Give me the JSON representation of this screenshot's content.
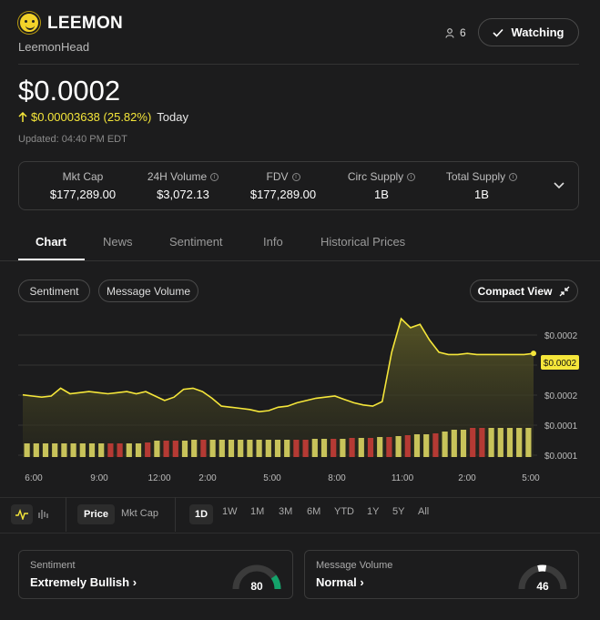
{
  "header": {
    "ticker": "LEEMON",
    "name": "LeemonHead",
    "watchers": "6",
    "watch_label": "Watching"
  },
  "price": {
    "value": "$0.0002",
    "change": "$0.00003638 (25.82%)",
    "period": "Today",
    "updated": "Updated: 04:40 PM EDT"
  },
  "stats": [
    {
      "label": "Mkt Cap",
      "value": "$177,289.00"
    },
    {
      "label": "24H Volume",
      "value": "$3,072.13"
    },
    {
      "label": "FDV",
      "value": "$177,289.00"
    },
    {
      "label": "Circ Supply",
      "value": "1B"
    },
    {
      "label": "Total Supply",
      "value": "1B"
    }
  ],
  "tabs": [
    "Chart",
    "News",
    "Sentiment",
    "Info",
    "Historical Prices"
  ],
  "chart_toolbar": {
    "sentiment_label": "Sentiment",
    "message_volume_label": "Message Volume",
    "compact_view_label": "Compact View"
  },
  "chart_data": {
    "type": "line",
    "x_ticks": [
      "6:00",
      "9:00",
      "12:00",
      "2:00",
      "5:00",
      "8:00",
      "11:00",
      "2:00",
      "5:00"
    ],
    "y_ticks": [
      "$0.0002",
      "$0.0002",
      "$0.0001",
      "$0.0001"
    ],
    "current_label": "$0.0002",
    "price_series": [
      0.000147,
      0.000146,
      0.000145,
      0.000146,
      0.000153,
      0.000148,
      0.000149,
      0.00015,
      0.000149,
      0.000148,
      0.000149,
      0.00015,
      0.000148,
      0.00015,
      0.000146,
      0.000142,
      0.000145,
      0.000152,
      0.000153,
      0.00015,
      0.000144,
      0.000137,
      0.000136,
      0.000135,
      0.000134,
      0.000132,
      0.000133,
      0.000136,
      0.000137,
      0.00014,
      0.000142,
      0.000144,
      0.000145,
      0.000146,
      0.000143,
      0.00014,
      0.000138,
      0.000137,
      0.000141,
      0.000185,
      0.000215,
      0.000207,
      0.00021,
      0.000196,
      0.000185,
      0.000183,
      0.000183,
      0.000184,
      0.000183,
      0.000183,
      0.000183,
      0.000183,
      0.000183,
      0.000183,
      0.000184
    ],
    "volume_bars": [
      {
        "v": 0.15,
        "s": "bull"
      },
      {
        "v": 0.15,
        "s": "bull"
      },
      {
        "v": 0.15,
        "s": "bull"
      },
      {
        "v": 0.15,
        "s": "bull"
      },
      {
        "v": 0.15,
        "s": "bull"
      },
      {
        "v": 0.15,
        "s": "bull"
      },
      {
        "v": 0.15,
        "s": "bull"
      },
      {
        "v": 0.15,
        "s": "bull"
      },
      {
        "v": 0.15,
        "s": "bull"
      },
      {
        "v": 0.15,
        "s": "bear"
      },
      {
        "v": 0.15,
        "s": "bear"
      },
      {
        "v": 0.15,
        "s": "bull"
      },
      {
        "v": 0.15,
        "s": "bull"
      },
      {
        "v": 0.16,
        "s": "bear"
      },
      {
        "v": 0.18,
        "s": "bull"
      },
      {
        "v": 0.18,
        "s": "bear"
      },
      {
        "v": 0.18,
        "s": "bear"
      },
      {
        "v": 0.18,
        "s": "bull"
      },
      {
        "v": 0.19,
        "s": "bull"
      },
      {
        "v": 0.19,
        "s": "bear"
      },
      {
        "v": 0.19,
        "s": "bull"
      },
      {
        "v": 0.19,
        "s": "bull"
      },
      {
        "v": 0.19,
        "s": "bull"
      },
      {
        "v": 0.19,
        "s": "bull"
      },
      {
        "v": 0.19,
        "s": "bull"
      },
      {
        "v": 0.19,
        "s": "bull"
      },
      {
        "v": 0.19,
        "s": "bull"
      },
      {
        "v": 0.19,
        "s": "bull"
      },
      {
        "v": 0.19,
        "s": "bull"
      },
      {
        "v": 0.19,
        "s": "bear"
      },
      {
        "v": 0.19,
        "s": "bear"
      },
      {
        "v": 0.2,
        "s": "bull"
      },
      {
        "v": 0.2,
        "s": "bull"
      },
      {
        "v": 0.2,
        "s": "bear"
      },
      {
        "v": 0.2,
        "s": "bull"
      },
      {
        "v": 0.21,
        "s": "bear"
      },
      {
        "v": 0.21,
        "s": "bull"
      },
      {
        "v": 0.21,
        "s": "bear"
      },
      {
        "v": 0.22,
        "s": "bull"
      },
      {
        "v": 0.22,
        "s": "bear"
      },
      {
        "v": 0.23,
        "s": "bull"
      },
      {
        "v": 0.24,
        "s": "bear"
      },
      {
        "v": 0.25,
        "s": "bull"
      },
      {
        "v": 0.25,
        "s": "bull"
      },
      {
        "v": 0.26,
        "s": "bear"
      },
      {
        "v": 0.28,
        "s": "bull"
      },
      {
        "v": 0.3,
        "s": "bull"
      },
      {
        "v": 0.3,
        "s": "bull"
      },
      {
        "v": 0.32,
        "s": "bear"
      },
      {
        "v": 0.32,
        "s": "bear"
      },
      {
        "v": 0.32,
        "s": "bull"
      },
      {
        "v": 0.32,
        "s": "bull"
      },
      {
        "v": 0.32,
        "s": "bull"
      },
      {
        "v": 0.32,
        "s": "bull"
      },
      {
        "v": 0.32,
        "s": "bull"
      }
    ]
  },
  "controls": {
    "price_label": "Price",
    "mktcap_label": "Mkt Cap",
    "timeframes": [
      "1D",
      "1W",
      "1M",
      "3M",
      "6M",
      "YTD",
      "1Y",
      "5Y",
      "All"
    ]
  },
  "sentiment_card": {
    "label": "Sentiment",
    "value": "Extremely Bullish",
    "score": "80",
    "level": 0.8
  },
  "volume_card": {
    "label": "Message Volume",
    "value": "Normal",
    "score": "46",
    "level": 0.46
  },
  "colors": {
    "accent": "#f5e63a",
    "bull": "#c8c35a",
    "bear": "#b53a34",
    "gauge_green": "#14a36b"
  }
}
